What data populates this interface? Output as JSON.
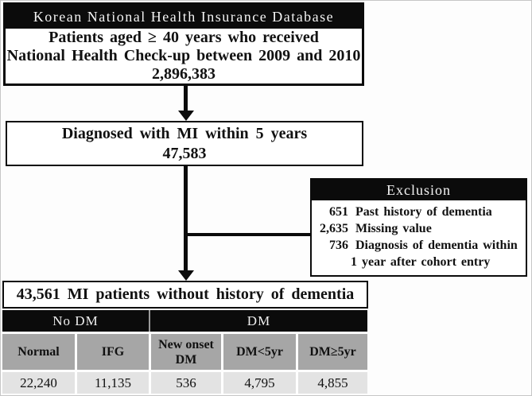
{
  "flowchart": {
    "db_box": {
      "header": "Korean National Health Insurance Database",
      "line1": "Patients aged ≥ 40 years who received",
      "line2": "National Health Check-up between 2009 and 2010",
      "count": "2,896,383"
    },
    "mi_box": {
      "line1": "Diagnosed with MI within 5 years",
      "count": "47,583"
    },
    "exclusion_box": {
      "header": "Exclusion",
      "items": [
        {
          "count": "651",
          "label": "Past history of dementia"
        },
        {
          "count": "2,635",
          "label": "Missing value"
        },
        {
          "count": "736",
          "label": "Diagnosis of dementia within",
          "label2": "1 year after cohort entry"
        }
      ]
    },
    "cohort_box": {
      "label": "43,561 MI patients without history of dementia"
    }
  },
  "table": {
    "group_headers": [
      {
        "label": "No DM"
      },
      {
        "label": "DM"
      }
    ],
    "columns": [
      "Normal",
      "IFG",
      "New onset DM",
      "DM<5yr",
      "DM≥5yr"
    ],
    "values": [
      "22,240",
      "11,135",
      "536",
      "4,795",
      "4,855"
    ]
  },
  "colors": {
    "ink": "#0b0b0b",
    "cell-dark": "#a6a6a6",
    "cell-light": "#e3e3e3"
  }
}
